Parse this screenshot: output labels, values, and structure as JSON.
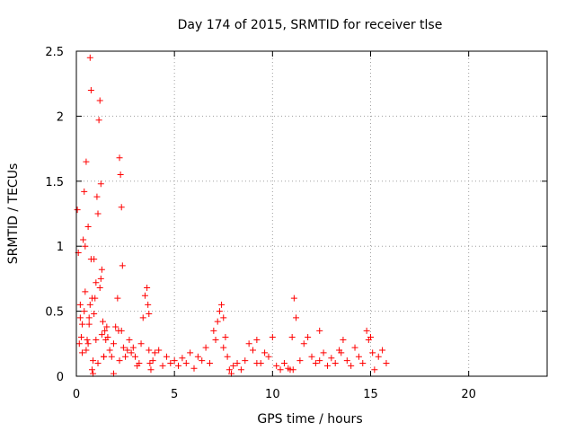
{
  "chart_data": {
    "type": "scatter",
    "title": "Day 174 of 2015, SRMTID for receiver tlse",
    "xlabel": "GPS time / hours",
    "ylabel": "SRMTID / TECUs",
    "xlim": [
      0,
      24
    ],
    "ylim": [
      0,
      2.5
    ],
    "xticks": [
      0,
      5,
      10,
      15,
      20
    ],
    "xtick_labels": [
      "0",
      "5",
      "10",
      "15",
      "20"
    ],
    "yticks": [
      0,
      0.5,
      1,
      1.5,
      2,
      2.5
    ],
    "ytick_labels": [
      "0",
      "0.5",
      "1",
      "1.5",
      "2",
      "2.5"
    ],
    "grid": true,
    "marker": "+",
    "color": "#ff0000",
    "series": [
      {
        "name": "SRMTID",
        "x": [
          0.05,
          0.1,
          0.15,
          0.2,
          0.25,
          0.3,
          0.35,
          0.4,
          0.45,
          0.5,
          0.55,
          0.6,
          0.65,
          0.7,
          0.75,
          0.8,
          0.85,
          0.9,
          0.95,
          1.0,
          1.05,
          1.1,
          1.15,
          1.2,
          1.25,
          1.3,
          1.35,
          1.4,
          1.45,
          1.5,
          1.6,
          1.7,
          1.8,
          1.9,
          2.0,
          2.1,
          2.2,
          2.25,
          2.3,
          2.35,
          2.4,
          2.5,
          2.6,
          2.7,
          2.8,
          2.9,
          3.0,
          3.1,
          3.2,
          3.3,
          3.4,
          3.5,
          3.6,
          3.65,
          3.7,
          3.75,
          3.8,
          3.9,
          4.0,
          4.2,
          4.4,
          4.6,
          4.8,
          5.0,
          5.2,
          5.4,
          5.6,
          5.8,
          6.0,
          6.2,
          6.4,
          6.6,
          6.8,
          7.0,
          7.1,
          7.2,
          7.3,
          7.4,
          7.5,
          7.6,
          7.7,
          7.8,
          7.9,
          8.0,
          8.2,
          8.4,
          8.6,
          8.8,
          9.0,
          9.2,
          9.4,
          9.6,
          9.8,
          10.0,
          10.2,
          10.4,
          10.6,
          10.8,
          10.9,
          11.0,
          11.1,
          11.2,
          11.4,
          11.6,
          11.8,
          12.0,
          12.2,
          12.4,
          12.6,
          12.8,
          13.0,
          13.2,
          13.4,
          13.6,
          13.8,
          14.0,
          14.2,
          14.4,
          14.6,
          14.8,
          15.0,
          15.1,
          15.2,
          15.4,
          15.6,
          15.8,
          0.3,
          0.5,
          0.7,
          0.8,
          0.9,
          1.2,
          1.25,
          1.3,
          0.75,
          0.45,
          1.55,
          2.3,
          0.2,
          0.6,
          1.0,
          1.4,
          2.2,
          0.4,
          0.65,
          0.85,
          1.1,
          1.9,
          2.15,
          3.7,
          7.5,
          9.2,
          11.05,
          12.4,
          13.5,
          14.9
        ],
        "y": [
          1.28,
          0.95,
          0.25,
          0.55,
          0.3,
          0.4,
          1.05,
          1.42,
          0.65,
          1.65,
          0.28,
          1.15,
          0.45,
          2.45,
          2.2,
          0.05,
          0.02,
          0.9,
          0.6,
          0.72,
          1.38,
          1.25,
          1.97,
          2.12,
          1.48,
          0.82,
          0.42,
          0.15,
          0.35,
          0.28,
          0.3,
          0.2,
          0.15,
          0.25,
          0.38,
          0.6,
          1.68,
          1.55,
          1.3,
          0.85,
          0.22,
          0.15,
          0.2,
          0.28,
          0.18,
          0.22,
          0.15,
          0.08,
          0.1,
          0.25,
          0.45,
          0.62,
          0.68,
          0.55,
          0.2,
          0.1,
          0.05,
          0.12,
          0.18,
          0.2,
          0.08,
          0.15,
          0.1,
          0.12,
          0.08,
          0.14,
          0.1,
          0.18,
          0.06,
          0.15,
          0.12,
          0.22,
          0.1,
          0.35,
          0.28,
          0.42,
          0.5,
          0.55,
          0.45,
          0.3,
          0.15,
          0.05,
          0.02,
          0.08,
          0.1,
          0.05,
          0.12,
          0.25,
          0.2,
          0.28,
          0.1,
          0.18,
          0.15,
          0.3,
          0.08,
          0.05,
          0.1,
          0.06,
          0.05,
          0.3,
          0.6,
          0.45,
          0.12,
          0.25,
          0.3,
          0.15,
          0.1,
          0.12,
          0.18,
          0.08,
          0.14,
          0.1,
          0.2,
          0.28,
          0.12,
          0.08,
          0.22,
          0.15,
          0.1,
          0.35,
          0.3,
          0.18,
          0.05,
          0.15,
          0.2,
          0.1,
          0.18,
          0.2,
          0.55,
          0.6,
          0.48,
          0.68,
          0.75,
          0.32,
          0.9,
          1.0,
          0.38,
          0.35,
          0.45,
          0.25,
          0.28,
          0.15,
          0.12,
          0.5,
          0.4,
          0.12,
          0.1,
          0.02,
          0.35,
          0.48,
          0.22,
          0.1,
          0.05,
          0.35,
          0.18,
          0.28
        ]
      }
    ]
  }
}
